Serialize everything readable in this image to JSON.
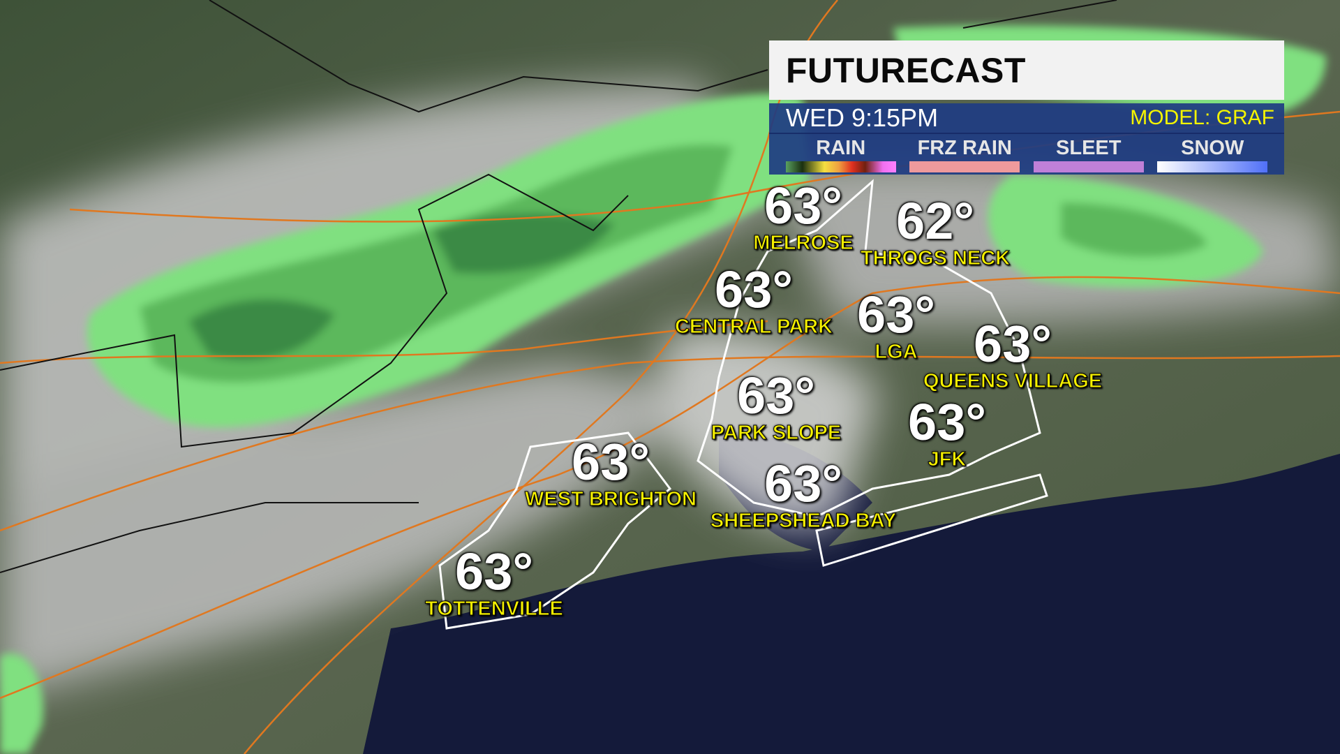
{
  "header": {
    "title": "FUTURECAST",
    "time": "WED 9:15PM",
    "model": "MODEL: GRAF"
  },
  "legend": [
    {
      "label": "RAIN",
      "gradient": [
        "#5aa060",
        "#1a3010",
        "#f5e040",
        "#f0a040",
        "#e03020",
        "#702010",
        "#f070f0",
        "#ff80ff"
      ]
    },
    {
      "label": "FRZ RAIN",
      "color": "#ee9a9c"
    },
    {
      "label": "SLEET",
      "color": "#c080d8"
    },
    {
      "label": "SNOW",
      "gradient": [
        "#ffffff",
        "#5070f8"
      ]
    }
  ],
  "locations": [
    {
      "temp": "63°",
      "name": "MELROSE"
    },
    {
      "temp": "62°",
      "name": "THROGS NECK"
    },
    {
      "temp": "63°",
      "name": "CENTRAL PARK"
    },
    {
      "temp": "63°",
      "name": "LGA"
    },
    {
      "temp": "63°",
      "name": "QUEENS VILLAGE"
    },
    {
      "temp": "63°",
      "name": "PARK SLOPE"
    },
    {
      "temp": "63°",
      "name": "JFK"
    },
    {
      "temp": "63°",
      "name": "WEST BRIGHTON"
    },
    {
      "temp": "63°",
      "name": "SHEEPSHEAD BAY"
    },
    {
      "temp": "63°",
      "name": "TOTTENVILLE"
    }
  ],
  "colors": {
    "rain_light": "#80e080",
    "rain_mid": "#5cb85c",
    "rain_dark": "#3a8a45",
    "ocean": "#141a3a",
    "cloud": "#c8c8c8"
  }
}
